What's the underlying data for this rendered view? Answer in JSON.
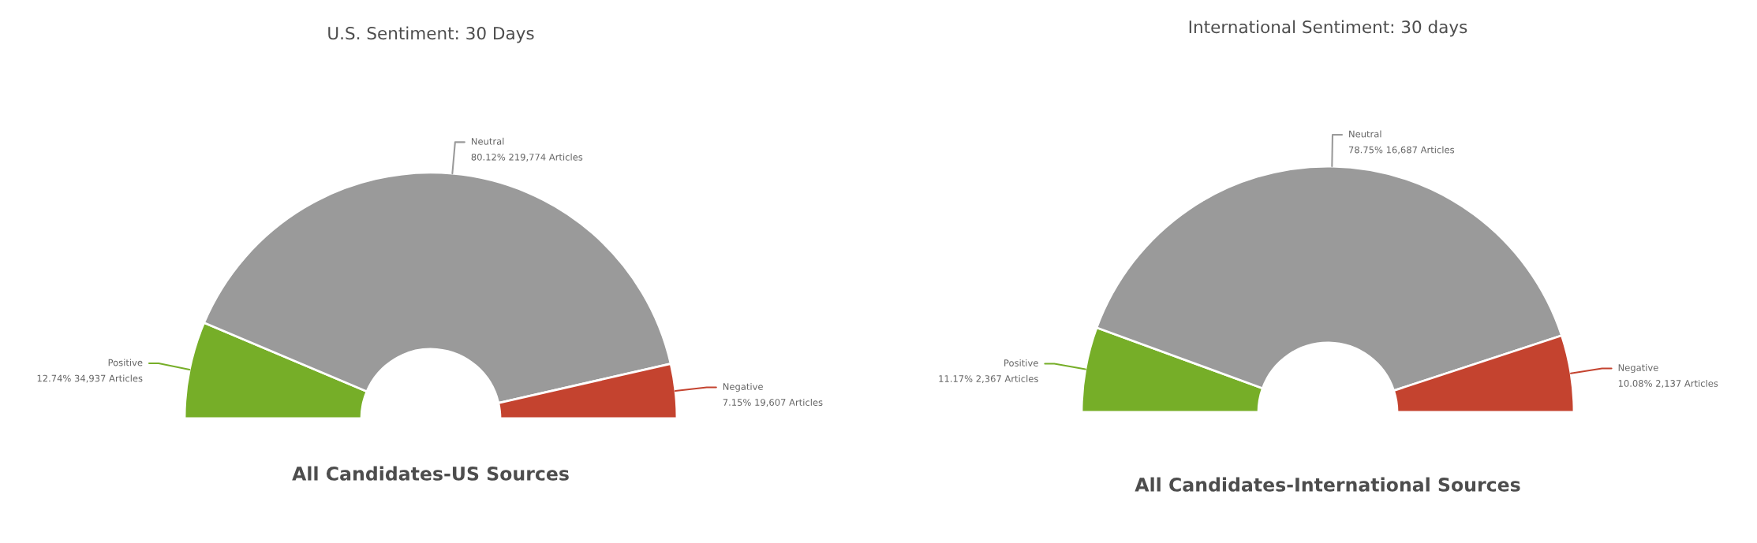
{
  "chart_data": [
    {
      "type": "donut",
      "title": "U.S. Sentiment: 30 Days",
      "subtitle": "All Candidates-US Sources",
      "categories": [
        "Positive",
        "Neutral",
        "Negative"
      ],
      "values": [
        34937,
        219774,
        19607
      ],
      "colors": [
        "#76ae28",
        "#9a9a9a",
        "#c4432f"
      ],
      "value_labels": [
        "12.74% 34,937 Articles",
        "80.12% 219,774 Articles",
        "7.15% 19,607 Articles"
      ]
    },
    {
      "type": "donut",
      "title": "International Sentiment: 30 days",
      "subtitle": "All Candidates-International Sources",
      "categories": [
        "Positive",
        "Neutral",
        "Negative"
      ],
      "values": [
        2367,
        16687,
        2137
      ],
      "colors": [
        "#76ae28",
        "#9a9a9a",
        "#c4432f"
      ],
      "value_labels": [
        "11.17% 2,367 Articles",
        "78.75% 16,687 Articles",
        "10.08% 2,137 Articles"
      ]
    }
  ]
}
